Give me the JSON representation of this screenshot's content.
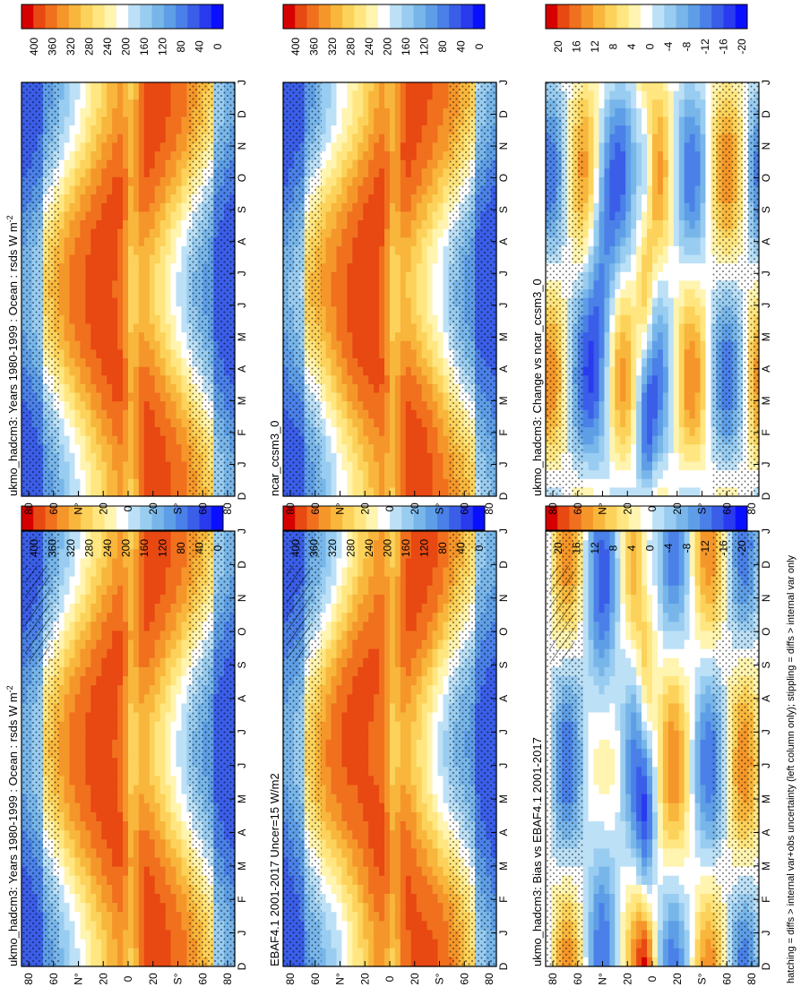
{
  "figure": {
    "footer": "hatching = diffs > internal var+obs uncertainty (left column only); stippling = diffs > internal var only",
    "orientation": "rotated 90 degrees clockwise"
  },
  "chart_data": [
    {
      "id": "p1",
      "type": "heatmap",
      "title": "ukmo_hadcm3: Years 1980-1999 : Ocean : rsds W m",
      "title_sup": "-2",
      "months": [
        "D",
        "J",
        "F",
        "M",
        "A",
        "M",
        "J",
        "J",
        "A",
        "S",
        "O",
        "N",
        "D",
        "J"
      ],
      "lat_ticks": [
        "80",
        "60",
        "N°",
        "20",
        "0",
        "20",
        "S°",
        "60",
        "80"
      ],
      "colorbar": {
        "ticks": [
          "400",
          "360",
          "320",
          "280",
          "240",
          "200",
          "160",
          "120",
          "80",
          "40",
          "0"
        ],
        "range": [
          0,
          420
        ]
      },
      "colors": {
        "low": "#0a10ff",
        "high": "#d60000"
      }
    },
    {
      "id": "p2",
      "type": "heatmap",
      "title": "EBAF4.1 2001-2017 Uncer=15 W/m2",
      "months": [
        "D",
        "J",
        "F",
        "M",
        "A",
        "M",
        "J",
        "J",
        "A",
        "S",
        "O",
        "N",
        "D",
        "J"
      ],
      "lat_ticks": [
        "80",
        "60",
        "N°",
        "20",
        "0",
        "20",
        "S°",
        "60",
        "80"
      ],
      "colorbar": {
        "ticks": [
          "400",
          "360",
          "320",
          "280",
          "240",
          "200",
          "160",
          "120",
          "80",
          "40",
          "0"
        ],
        "range": [
          0,
          420
        ]
      },
      "colors": {
        "low": "#0a10ff",
        "high": "#d60000"
      }
    },
    {
      "id": "p3",
      "type": "heatmap",
      "title": "ukmo_hadcm3: Bias vs EBAF4.1 2001-2017",
      "months": [
        "D",
        "J",
        "F",
        "M",
        "A",
        "M",
        "J",
        "J",
        "A",
        "S",
        "O",
        "N",
        "D",
        "J"
      ],
      "lat_ticks": [
        "80",
        "60",
        "N°",
        "20",
        "0",
        "20",
        "S°",
        "60",
        "80"
      ],
      "colorbar": {
        "ticks": [
          "20",
          "16",
          "12",
          "8",
          "4",
          "0",
          "-4",
          "-8",
          "-12",
          "-16",
          "-20"
        ],
        "range": [
          -22,
          22
        ]
      },
      "colors": {
        "low": "#0a10ff",
        "high": "#d60000"
      }
    },
    {
      "id": "p4",
      "type": "heatmap",
      "title": "ukmo_hadcm3: Years 1980-1999 : Ocean : rsds W m",
      "title_sup": "-2",
      "months": [
        "D",
        "J",
        "F",
        "M",
        "A",
        "M",
        "J",
        "J",
        "A",
        "S",
        "O",
        "N",
        "D",
        "J"
      ],
      "lat_ticks": [
        "80",
        "60",
        "N°",
        "20",
        "0",
        "20",
        "S°",
        "60",
        "80"
      ],
      "colorbar": {
        "ticks": [
          "400",
          "360",
          "320",
          "280",
          "240",
          "200",
          "160",
          "120",
          "80",
          "40",
          "0"
        ],
        "range": [
          0,
          420
        ]
      },
      "colors": {
        "low": "#0a10ff",
        "high": "#d60000"
      }
    },
    {
      "id": "p5",
      "type": "heatmap",
      "title": "ncar_ccsm3_0",
      "months": [
        "D",
        "J",
        "F",
        "M",
        "A",
        "M",
        "J",
        "J",
        "A",
        "S",
        "O",
        "N",
        "D",
        "J"
      ],
      "lat_ticks": [
        "80",
        "60",
        "N°",
        "20",
        "0",
        "20",
        "S°",
        "60",
        "80"
      ],
      "colorbar": {
        "ticks": [
          "400",
          "360",
          "320",
          "280",
          "240",
          "200",
          "160",
          "120",
          "80",
          "40",
          "0"
        ],
        "range": [
          0,
          420
        ]
      },
      "colors": {
        "low": "#0a10ff",
        "high": "#d60000"
      }
    },
    {
      "id": "p6",
      "type": "heatmap",
      "title": "ukmo_hadcm3: Change vs ncar_ccsm3_0",
      "months": [
        "D",
        "J",
        "F",
        "M",
        "A",
        "M",
        "J",
        "J",
        "A",
        "S",
        "O",
        "N",
        "D",
        "J"
      ],
      "lat_ticks": [
        "80",
        "60",
        "N°",
        "20",
        "0",
        "20",
        "S°",
        "60",
        "80"
      ],
      "colorbar": {
        "ticks": [
          "20",
          "16",
          "12",
          "8",
          "4",
          "0",
          "-4",
          "-8",
          "-12",
          "-16",
          "-20"
        ],
        "range": [
          -22,
          22
        ]
      },
      "colors": {
        "low": "#0a10ff",
        "high": "#d60000"
      }
    }
  ]
}
